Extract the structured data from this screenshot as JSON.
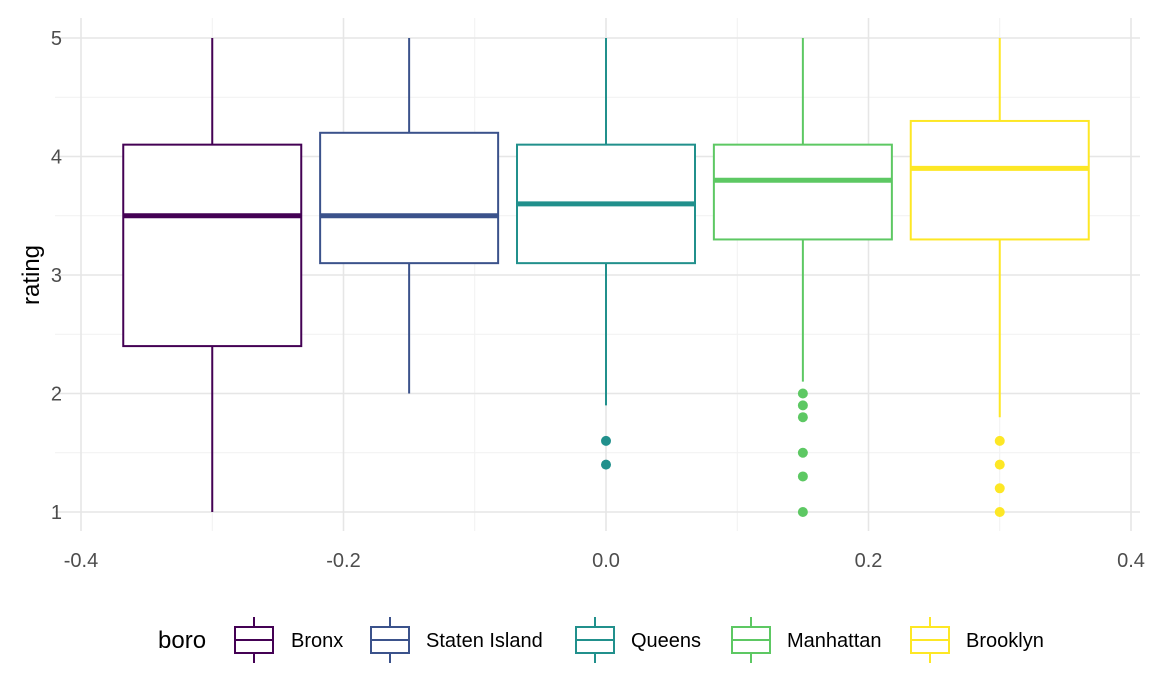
{
  "chart_data": {
    "type": "boxplot",
    "title": "",
    "xlabel": "",
    "ylabel": "rating",
    "xlim": [
      -0.4,
      0.4
    ],
    "ylim": [
      1,
      5
    ],
    "x_ticks": [
      -0.4,
      -0.2,
      0.0,
      0.2,
      0.4
    ],
    "x_tick_labels": [
      "-0.4",
      "-0.2",
      "0.0",
      "0.2",
      "0.4"
    ],
    "y_ticks": [
      1,
      2,
      3,
      4,
      5
    ],
    "y_tick_labels": [
      "1",
      "2",
      "3",
      "4",
      "5"
    ],
    "grid": true,
    "legend": {
      "title": "boro",
      "position": "bottom"
    },
    "series": [
      {
        "name": "Bronx",
        "color": "#440154",
        "x": -0.3,
        "whisker_low": 1.0,
        "q1": 2.4,
        "median": 3.5,
        "q3": 4.1,
        "whisker_high": 5.0,
        "outliers": []
      },
      {
        "name": "Staten Island",
        "color": "#3B528B",
        "x": -0.15,
        "whisker_low": 2.0,
        "q1": 3.1,
        "median": 3.5,
        "q3": 4.2,
        "whisker_high": 5.0,
        "outliers": []
      },
      {
        "name": "Queens",
        "color": "#21908C",
        "x": 0.0,
        "whisker_low": 1.9,
        "q1": 3.1,
        "median": 3.6,
        "q3": 4.1,
        "whisker_high": 5.0,
        "outliers": [
          1.6,
          1.4
        ]
      },
      {
        "name": "Manhattan",
        "color": "#5DC863",
        "x": 0.15,
        "whisker_low": 2.1,
        "q1": 3.3,
        "median": 3.8,
        "q3": 4.1,
        "whisker_high": 5.0,
        "outliers": [
          2.0,
          1.9,
          1.8,
          1.5,
          1.3,
          1.0
        ]
      },
      {
        "name": "Brooklyn",
        "color": "#FDE725",
        "x": 0.3,
        "whisker_low": 1.8,
        "q1": 3.3,
        "median": 3.9,
        "q3": 4.3,
        "whisker_high": 5.0,
        "outliers": [
          1.6,
          1.4,
          1.2,
          1.0
        ]
      }
    ]
  }
}
